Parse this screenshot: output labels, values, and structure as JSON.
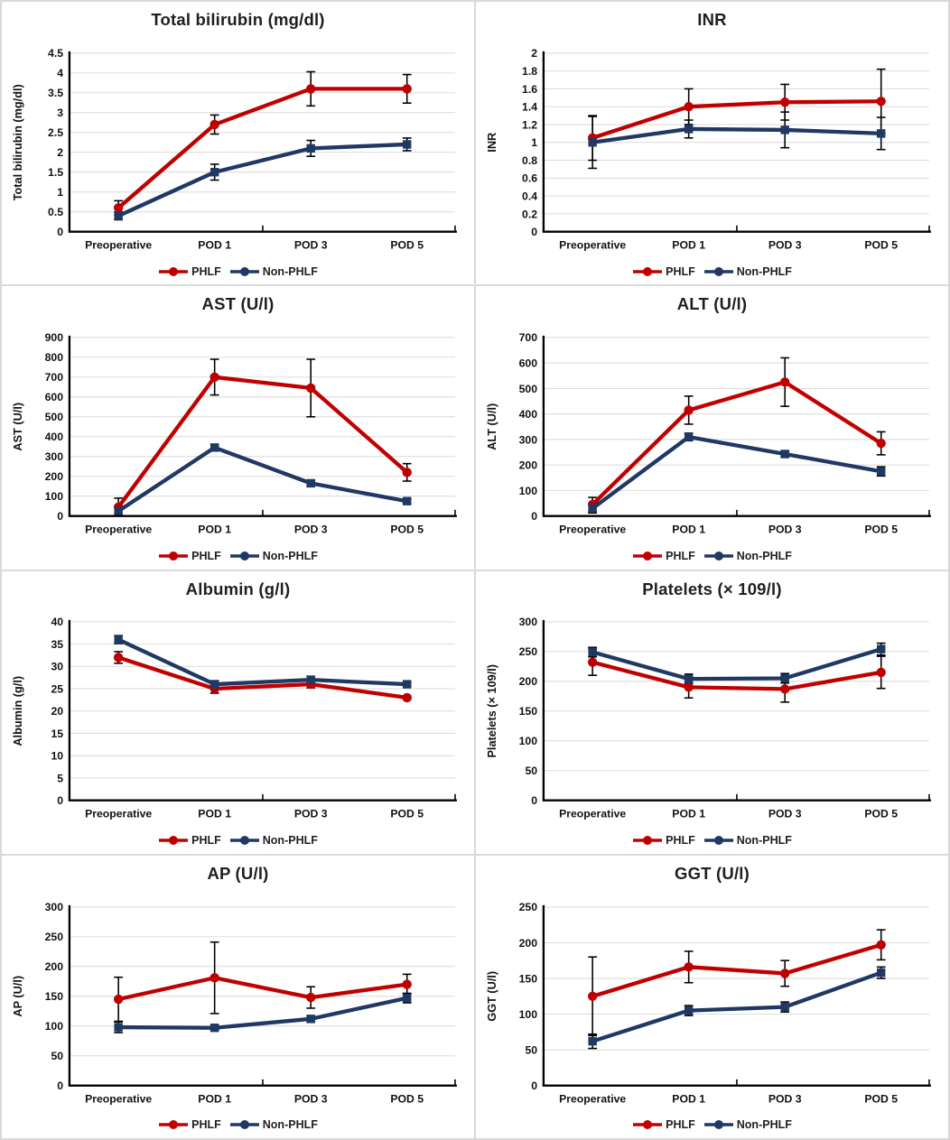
{
  "figure": {
    "groups": [
      "PHLF",
      "Non-PHLF"
    ],
    "x_categories": [
      "Preoperative",
      "POD 1",
      "POD 3",
      "POD 5"
    ]
  },
  "colors": {
    "phlf": "#C00000",
    "non_phlf": "#1F3864",
    "grid": "#D9D9D9",
    "axis": "#000000",
    "error_bar": "#000000",
    "title_text": "#1f1f1f"
  },
  "legend": {
    "phlf_label": "PHLF",
    "non_phlf_label": "Non-PHLF"
  },
  "chart_data": [
    {
      "type": "line",
      "title": "Total bilirubin (mg/dl)",
      "ylabel": "Total bilirubin (mg/dl)",
      "ylim": [
        0,
        4.5
      ],
      "ytick_step": 0.5,
      "grid": true,
      "legend_position": "bottom",
      "categories": [
        "Preoperative",
        "POD 1",
        "POD 3",
        "POD 5"
      ],
      "series": [
        {
          "name": "PHLF",
          "color_key": "phlf",
          "marker": "circle",
          "values": [
            0.6,
            2.7,
            3.6,
            3.6
          ],
          "errors": [
            0.18,
            0.24,
            0.43,
            0.36
          ]
        },
        {
          "name": "Non-PHLF",
          "color_key": "non_phlf",
          "marker": "square",
          "values": [
            0.4,
            1.5,
            2.1,
            2.2
          ],
          "errors": [
            0.1,
            0.2,
            0.2,
            0.16
          ]
        }
      ]
    },
    {
      "type": "line",
      "title": "INR",
      "ylabel": "INR",
      "ylim": [
        0,
        2
      ],
      "ytick_step": 0.2,
      "grid": true,
      "legend_position": "bottom",
      "categories": [
        "Preoperative",
        "POD 1",
        "POD 3",
        "POD 5"
      ],
      "series": [
        {
          "name": "PHLF",
          "color_key": "phlf",
          "marker": "circle",
          "values": [
            1.05,
            1.4,
            1.45,
            1.46
          ],
          "errors": [
            0.25,
            0.2,
            0.2,
            0.36
          ]
        },
        {
          "name": "Non-PHLF",
          "color_key": "non_phlf",
          "marker": "square",
          "values": [
            1.0,
            1.15,
            1.14,
            1.1
          ],
          "errors": [
            0.29,
            0.1,
            0.2,
            0.18
          ]
        }
      ]
    },
    {
      "type": "line",
      "title": "AST (U/l)",
      "ylabel": "AST (U/l)",
      "ylim": [
        0,
        900
      ],
      "ytick_step": 100,
      "grid": true,
      "legend_position": "bottom",
      "categories": [
        "Preoperative",
        "POD 1",
        "POD 3",
        "POD 5"
      ],
      "series": [
        {
          "name": "PHLF",
          "color_key": "phlf",
          "marker": "circle",
          "values": [
            45,
            700,
            645,
            220
          ],
          "errors": [
            45,
            90,
            145,
            44
          ]
        },
        {
          "name": "Non-PHLF",
          "color_key": "non_phlf",
          "marker": "square",
          "values": [
            25,
            345,
            165,
            75
          ],
          "errors": [
            20,
            15,
            15,
            10
          ]
        }
      ]
    },
    {
      "type": "line",
      "title": "ALT (U/l)",
      "ylabel": "ALT (U/l)",
      "ylim": [
        0,
        700
      ],
      "ytick_step": 100,
      "grid": true,
      "legend_position": "bottom",
      "categories": [
        "Preoperative",
        "POD 1",
        "POD 3",
        "POD 5"
      ],
      "series": [
        {
          "name": "PHLF",
          "color_key": "phlf",
          "marker": "circle",
          "values": [
            45,
            415,
            525,
            285
          ],
          "errors": [
            28,
            55,
            95,
            45
          ]
        },
        {
          "name": "Non-PHLF",
          "color_key": "non_phlf",
          "marker": "square",
          "values": [
            30,
            310,
            243,
            175
          ],
          "errors": [
            18,
            15,
            12,
            18
          ]
        }
      ]
    },
    {
      "type": "line",
      "title": "Albumin (g/l)",
      "ylabel": "Albumin (g/l)",
      "ylim": [
        0,
        40
      ],
      "ytick_step": 5,
      "grid": true,
      "legend_position": "bottom",
      "categories": [
        "Preoperative",
        "POD 1",
        "POD 3",
        "POD 5"
      ],
      "series": [
        {
          "name": "PHLF",
          "color_key": "phlf",
          "marker": "circle",
          "values": [
            32,
            25,
            26,
            23
          ],
          "errors": [
            1.3,
            1.0,
            0.8,
            0.4
          ]
        },
        {
          "name": "Non-PHLF",
          "color_key": "non_phlf",
          "marker": "square",
          "values": [
            36,
            26,
            27,
            26
          ],
          "errors": [
            0.9,
            0.8,
            0.8,
            0.4
          ]
        }
      ]
    },
    {
      "type": "line",
      "title": "Platelets (× 109/l)",
      "ylabel": "Platelets (× 109/l)",
      "ylim": [
        0,
        300
      ],
      "ytick_step": 50,
      "grid": true,
      "legend_position": "bottom",
      "categories": [
        "Preoperative",
        "POD 1",
        "POD 3",
        "POD 5"
      ],
      "series": [
        {
          "name": "PHLF",
          "color_key": "phlf",
          "marker": "circle",
          "values": [
            232,
            190,
            187,
            215
          ],
          "errors": [
            22,
            18,
            22,
            27
          ]
        },
        {
          "name": "Non-PHLF",
          "color_key": "non_phlf",
          "marker": "square",
          "values": [
            249,
            204,
            205,
            254
          ],
          "errors": [
            8,
            8,
            8,
            10
          ]
        }
      ]
    },
    {
      "type": "line",
      "title": "AP (U/l)",
      "ylabel": "AP (U/l)",
      "ylim": [
        0,
        300
      ],
      "ytick_step": 50,
      "grid": true,
      "legend_position": "bottom",
      "categories": [
        "Preoperative",
        "POD 1",
        "POD 3",
        "POD 5"
      ],
      "series": [
        {
          "name": "PHLF",
          "color_key": "phlf",
          "marker": "circle",
          "values": [
            145,
            181,
            148,
            170
          ],
          "errors": [
            37,
            60,
            18,
            17
          ]
        },
        {
          "name": "Non-PHLF",
          "color_key": "non_phlf",
          "marker": "square",
          "values": [
            98,
            97,
            112,
            147
          ],
          "errors": [
            9,
            4,
            5,
            8
          ]
        }
      ]
    },
    {
      "type": "line",
      "title": "GGT (U/l)",
      "ylabel": "GGT (U/l)",
      "ylim": [
        0,
        250
      ],
      "ytick_step": 50,
      "grid": true,
      "legend_position": "bottom",
      "categories": [
        "Preoperative",
        "POD 1",
        "POD 3",
        "POD 5"
      ],
      "series": [
        {
          "name": "PHLF",
          "color_key": "phlf",
          "marker": "circle",
          "values": [
            125,
            166,
            157,
            197
          ],
          "errors": [
            55,
            22,
            18,
            21
          ]
        },
        {
          "name": "Non-PHLF",
          "color_key": "non_phlf",
          "marker": "square",
          "values": [
            62,
            105,
            110,
            158
          ],
          "errors": [
            10,
            7,
            7,
            8
          ]
        }
      ]
    }
  ]
}
